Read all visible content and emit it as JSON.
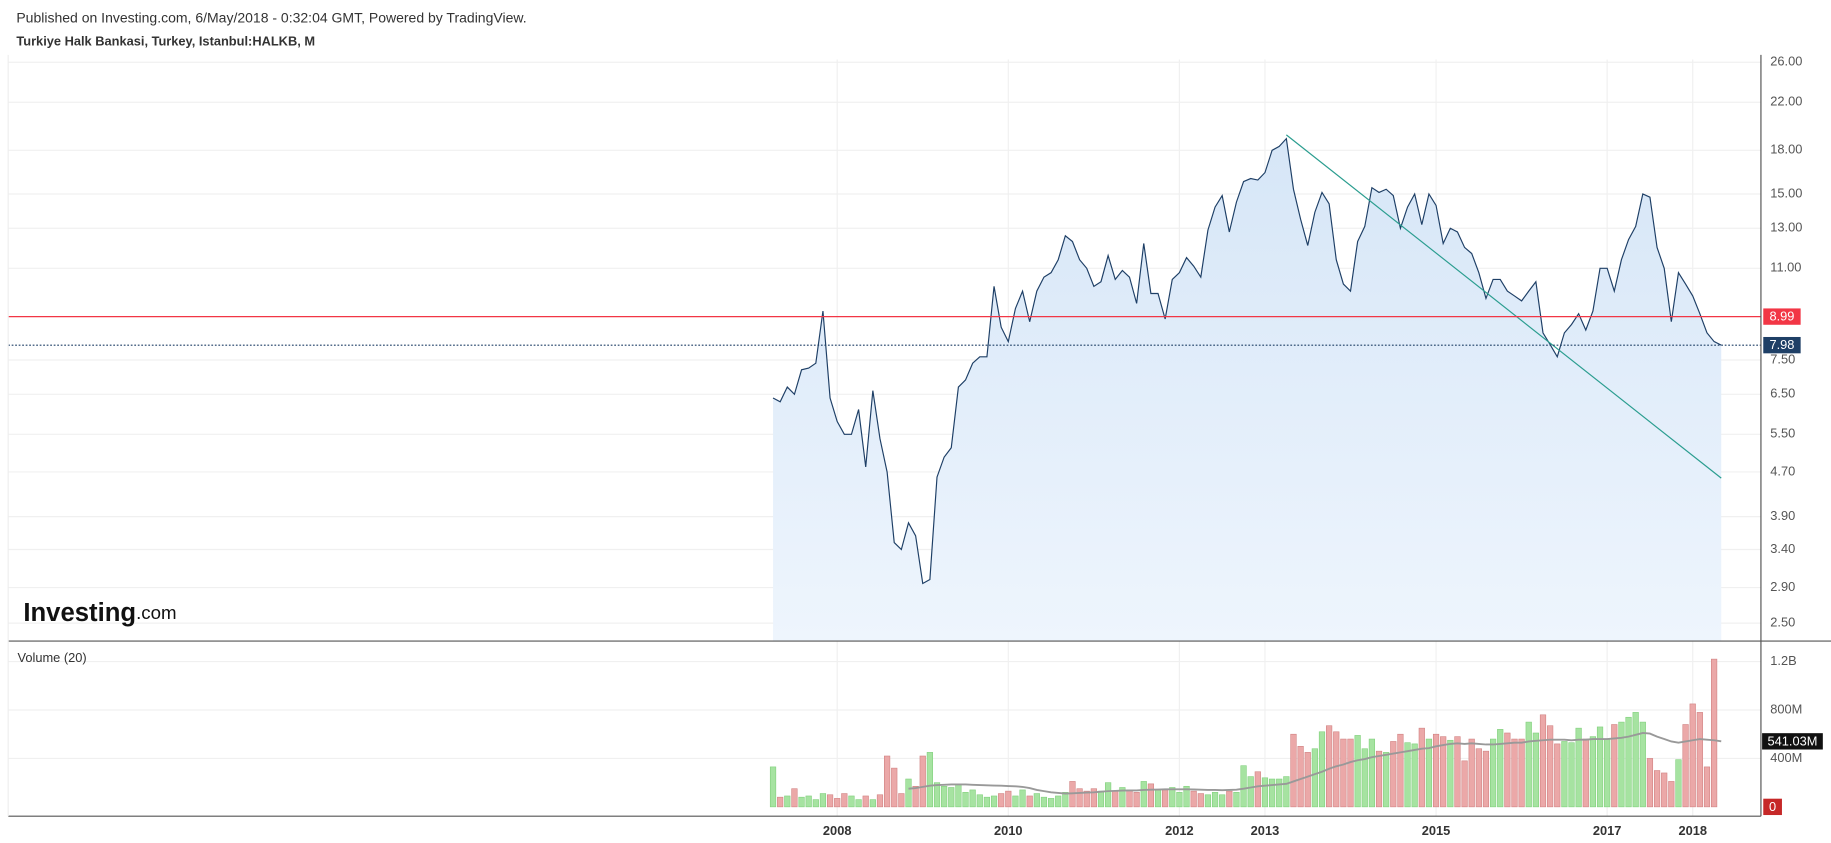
{
  "header": {
    "published": "Published on Investing.com, 6/May/2018 - 0:32:04 GMT, Powered by TradingView.",
    "symbol": "Turkiye Halk Bankasi, Turkey, Istanbul:HALKB, M",
    "logo_main": "Investing",
    "logo_suffix": ".com"
  },
  "chart_data": {
    "type": "line",
    "color": "#1e3f66",
    "yscale": "log",
    "grid": true,
    "categories": [
      null,
      null,
      null,
      null,
      null,
      null,
      null,
      null,
      null,
      "2008",
      null,
      null,
      null,
      null,
      null,
      null,
      null,
      null,
      null,
      null,
      null,
      null,
      null,
      null,
      null,
      null,
      null,
      null,
      null,
      null,
      null,
      null,
      null,
      "2010",
      null,
      null,
      null,
      null,
      null,
      null,
      null,
      null,
      null,
      null,
      null,
      null,
      null,
      null,
      null,
      null,
      null,
      null,
      null,
      null,
      null,
      null,
      null,
      "2012",
      null,
      null,
      null,
      null,
      null,
      null,
      null,
      null,
      null,
      null,
      null,
      "2013",
      null,
      null,
      null,
      null,
      null,
      null,
      null,
      null,
      null,
      null,
      null,
      null,
      null,
      null,
      null,
      null,
      null,
      null,
      null,
      null,
      null,
      null,
      null,
      "2015",
      null,
      null,
      null,
      null,
      null,
      null,
      null,
      null,
      null,
      null,
      null,
      null,
      null,
      null,
      null,
      null,
      null,
      null,
      null,
      null,
      null,
      null,
      null,
      "2017",
      null,
      null,
      null,
      null,
      null,
      null,
      null,
      null,
      null,
      null,
      null,
      "2018",
      null,
      null,
      null,
      null
    ],
    "values": [
      6.4,
      6.3,
      6.7,
      6.5,
      7.2,
      7.25,
      7.4,
      9.2,
      6.4,
      5.8,
      5.5,
      5.5,
      6.1,
      4.8,
      6.6,
      5.4,
      4.7,
      3.5,
      3.4,
      3.8,
      3.6,
      2.95,
      3.0,
      4.6,
      5.0,
      5.2,
      6.7,
      6.9,
      7.4,
      7.6,
      7.6,
      10.2,
      8.6,
      8.1,
      9.3,
      10.0,
      8.8,
      10.0,
      10.6,
      10.8,
      11.4,
      12.6,
      12.3,
      11.4,
      11.0,
      10.2,
      10.4,
      11.6,
      10.5,
      10.9,
      10.6,
      9.5,
      12.2,
      9.9,
      9.9,
      8.9,
      10.5,
      10.8,
      11.5,
      11.1,
      10.6,
      12.9,
      14.2,
      14.9,
      12.8,
      14.5,
      15.8,
      16.0,
      15.9,
      16.4,
      18.0,
      18.3,
      18.9,
      15.3,
      13.5,
      12.1,
      13.9,
      15.1,
      14.4,
      11.4,
      10.3,
      10.0,
      12.3,
      13.1,
      15.4,
      15.1,
      15.3,
      14.9,
      13.0,
      14.2,
      15.0,
      13.2,
      15.0,
      14.3,
      12.2,
      13.0,
      12.8,
      12.0,
      11.7,
      10.8,
      9.7,
      10.5,
      10.5,
      10.0,
      9.8,
      9.6,
      10.0,
      10.4,
      8.4,
      8.0,
      7.6,
      8.4,
      8.7,
      9.1,
      8.5,
      9.2,
      11.0,
      11.0,
      10.0,
      11.4,
      12.4,
      13.1,
      15.0,
      14.8,
      12.0,
      11.0,
      8.8,
      10.8,
      10.3,
      9.8,
      9.1,
      8.4,
      8.1,
      7.98
    ],
    "ylim": [
      2.32,
      26.3
    ],
    "yticks": [
      {
        "value": 2.5,
        "label": "2.50"
      },
      {
        "value": 2.9,
        "label": "2.90"
      },
      {
        "value": 3.4,
        "label": "3.40"
      },
      {
        "value": 3.9,
        "label": "3.90"
      },
      {
        "value": 4.7,
        "label": "4.70"
      },
      {
        "value": 5.5,
        "label": "5.50"
      },
      {
        "value": 6.5,
        "label": "6.50"
      },
      {
        "value": 7.5,
        "label": "7.50"
      },
      {
        "value": 11,
        "label": "11.00"
      },
      {
        "value": 13,
        "label": "13.00"
      },
      {
        "value": 15,
        "label": "15.00"
      },
      {
        "value": 18,
        "label": "18.00"
      },
      {
        "value": 22,
        "label": "22.00"
      },
      {
        "value": 26,
        "label": "26.00"
      }
    ],
    "reference_lines": [
      {
        "value": 8.99,
        "color": "#f23645",
        "style": "solid"
      },
      {
        "value": 7.98,
        "color": "#1e3f66",
        "style": "dotted"
      }
    ],
    "trend_line": {
      "start_index": 72,
      "start_value": 19.2,
      "end_index": 133,
      "end_value": 4.58,
      "color": "#2a9d8f"
    },
    "volume": {
      "type": "bar",
      "title": "Volume (20)",
      "up_color": "#a6e3a1",
      "down_color": "#eba8a8",
      "values": [
        330000000.0,
        80000000.0,
        90000000.0,
        150000000.0,
        80000000.0,
        90000000.0,
        60000000.0,
        110000000.0,
        100000000.0,
        70000000.0,
        110000000.0,
        90000000.0,
        60000000.0,
        90000000.0,
        60000000.0,
        100000000.0,
        420000000.0,
        320000000.0,
        110000000.0,
        230000000.0,
        170000000.0,
        420000000.0,
        450000000.0,
        200000000.0,
        170000000.0,
        160000000.0,
        190000000.0,
        120000000.0,
        140000000.0,
        100000000.0,
        80000000.0,
        90000000.0,
        110000000.0,
        130000000.0,
        90000000.0,
        140000000.0,
        90000000.0,
        110000000.0,
        80000000.0,
        70000000.0,
        90000000.0,
        120000000.0,
        210000000.0,
        150000000.0,
        130000000.0,
        150000000.0,
        130000000.0,
        200000000.0,
        130000000.0,
        160000000.0,
        140000000.0,
        120000000.0,
        210000000.0,
        190000000.0,
        140000000.0,
        140000000.0,
        160000000.0,
        120000000.0,
        170000000.0,
        130000000.0,
        110000000.0,
        100000000.0,
        120000000.0,
        100000000.0,
        130000000.0,
        120000000.0,
        340000000.0,
        250000000.0,
        290000000.0,
        240000000.0,
        230000000.0,
        230000000.0,
        250000000.0,
        600000000.0,
        500000000.0,
        450000000.0,
        480000000.0,
        620000000.0,
        670000000.0,
        620000000.0,
        560000000.0,
        560000000.0,
        590000000.0,
        480000000.0,
        560000000.0,
        460000000.0,
        450000000.0,
        540000000.0,
        600000000.0,
        530000000.0,
        520000000.0,
        650000000.0,
        560000000.0,
        600000000.0,
        580000000.0,
        550000000.0,
        580000000.0,
        380000000.0,
        560000000.0,
        480000000.0,
        460000000.0,
        560000000.0,
        640000000.0,
        610000000.0,
        560000000.0,
        560000000.0,
        700000000.0,
        610000000.0,
        760000000.0,
        670000000.0,
        520000000.0,
        540000000.0,
        530000000.0,
        650000000.0,
        560000000.0,
        580000000.0,
        660000000.0,
        560000000.0,
        680000000.0,
        700000000.0,
        740000000.0,
        780000000.0,
        700000000.0,
        400000000.0,
        300000000.0,
        280000000.0,
        210000000.0,
        390000000.0,
        680000000.0,
        850000000.0,
        780000000.0,
        330000000.0,
        1220000000.0,
        0
      ],
      "ma_color": "#999999",
      "ma_values": [
        null,
        null,
        null,
        null,
        null,
        null,
        null,
        null,
        null,
        null,
        null,
        null,
        null,
        null,
        null,
        null,
        null,
        null,
        null,
        150000000.0,
        155000000.0,
        165000000.0,
        175000000.0,
        180000000.0,
        182000000.0,
        185000000.0,
        185000000.0,
        185000000.0,
        182000000.0,
        180000000.0,
        178000000.0,
        176000000.0,
        175000000.0,
        172000000.0,
        170000000.0,
        165000000.0,
        155000000.0,
        140000000.0,
        130000000.0,
        120000000.0,
        115000000.0,
        110000000.0,
        112000000.0,
        115000000.0,
        118000000.0,
        120000000.0,
        125000000.0,
        130000000.0,
        132000000.0,
        135000000.0,
        136000000.0,
        136000000.0,
        140000000.0,
        142000000.0,
        143000000.0,
        145000000.0,
        145000000.0,
        145000000.0,
        145000000.0,
        144000000.0,
        142000000.0,
        140000000.0,
        140000000.0,
        138000000.0,
        140000000.0,
        142000000.0,
        150000000.0,
        160000000.0,
        170000000.0,
        175000000.0,
        180000000.0,
        185000000.0,
        190000000.0,
        210000000.0,
        230000000.0,
        250000000.0,
        270000000.0,
        290000000.0,
        315000000.0,
        335000000.0,
        350000000.0,
        370000000.0,
        385000000.0,
        395000000.0,
        410000000.0,
        420000000.0,
        430000000.0,
        440000000.0,
        450000000.0,
        460000000.0,
        470000000.0,
        480000000.0,
        485000000.0,
        500000000.0,
        510000000.0,
        520000000.0,
        525000000.0,
        520000000.0,
        525000000.0,
        520000000.0,
        515000000.0,
        515000000.0,
        520000000.0,
        525000000.0,
        530000000.0,
        530000000.0,
        540000000.0,
        545000000.0,
        550000000.0,
        555000000.0,
        555000000.0,
        555000000.0,
        550000000.0,
        555000000.0,
        555000000.0,
        560000000.0,
        560000000.0,
        560000000.0,
        565000000.0,
        570000000.0,
        580000000.0,
        595000000.0,
        610000000.0,
        605000000.0,
        580000000.0,
        560000000.0,
        540000000.0,
        530000000.0,
        540000000.0,
        550000000.0,
        560000000.0,
        555000000.0,
        550000000.0,
        541030000.0
      ],
      "ma_value_label": "541.03M",
      "ylim": [
        -77000000.0,
        1350000000.0
      ],
      "yticks": [
        {
          "value": 400000000,
          "label": "400M"
        },
        {
          "value": 800000000,
          "label": "800M"
        },
        {
          "value": 1200000000,
          "label": "1.2B"
        }
      ]
    }
  }
}
